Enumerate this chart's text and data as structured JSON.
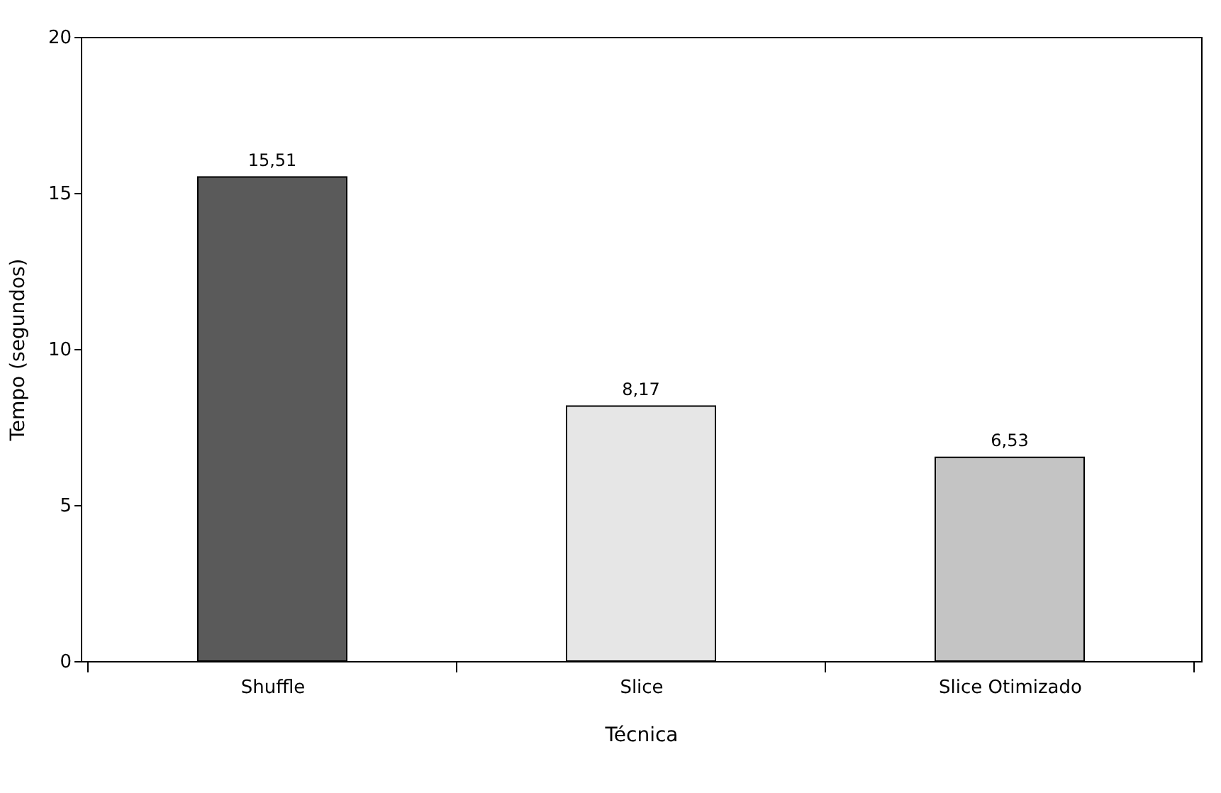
{
  "chart_data": {
    "type": "bar",
    "xlabel": "Técnica",
    "ylabel": "Tempo (segundos)",
    "categories": [
      "Shuffle",
      "Slice",
      "Slice Otimizado"
    ],
    "values": [
      15.51,
      8.17,
      6.53
    ],
    "colors": [
      "#5a5a5a",
      "#e6e6e6",
      "#c4c4c4"
    ],
    "value_labels": [
      "15,51",
      "8,17",
      "6,53"
    ],
    "ylim": [
      0,
      20
    ],
    "yticks": [
      0,
      5,
      10,
      15,
      20
    ],
    "grid": false
  }
}
